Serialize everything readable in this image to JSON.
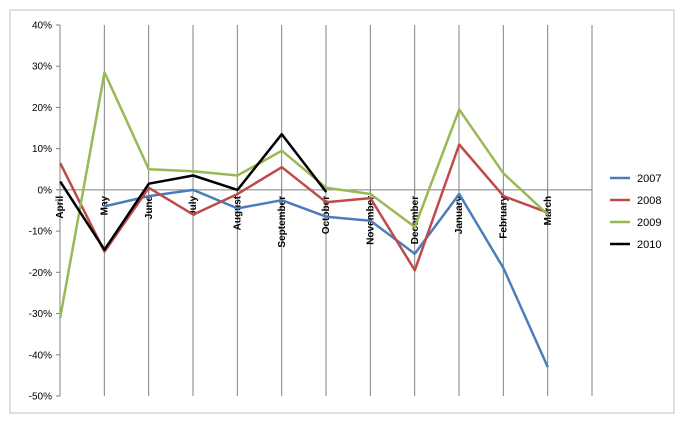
{
  "chart_data": {
    "type": "line",
    "categories": [
      "April",
      "May",
      "June",
      "July",
      "August",
      "September",
      "October",
      "November",
      "December",
      "January",
      "February",
      "March"
    ],
    "ylim": [
      -50,
      40
    ],
    "yticks": [
      "40%",
      "30%",
      "20%",
      "10%",
      "0%",
      "-10%",
      "-20%",
      "-30%",
      "-40%",
      "-50%"
    ],
    "grid": "vertical lines between categories",
    "legend_position": "right",
    "series": [
      {
        "name": "2007",
        "color": "#4a7ebb",
        "values": [
          null,
          -4,
          -1.5,
          0,
          -4.5,
          -2.5,
          -6.5,
          -7.5,
          -15.5,
          -1,
          -19,
          -43
        ]
      },
      {
        "name": "2008",
        "color": "#be4b48",
        "values": [
          6.5,
          -15,
          0.5,
          -6,
          -1,
          5.5,
          -3,
          -2,
          -19.5,
          11,
          -1.5,
          -5.5
        ]
      },
      {
        "name": "2009",
        "color": "#98b954",
        "values": [
          -31,
          28.5,
          5,
          4.5,
          3.5,
          9.5,
          0.5,
          -1,
          -9,
          19.5,
          4,
          -6
        ]
      },
      {
        "name": "2010",
        "color": "#000000",
        "values": [
          2,
          -14.5,
          1.5,
          3.5,
          0,
          13.5,
          -0.5,
          null,
          null,
          null,
          null,
          null
        ]
      }
    ]
  }
}
